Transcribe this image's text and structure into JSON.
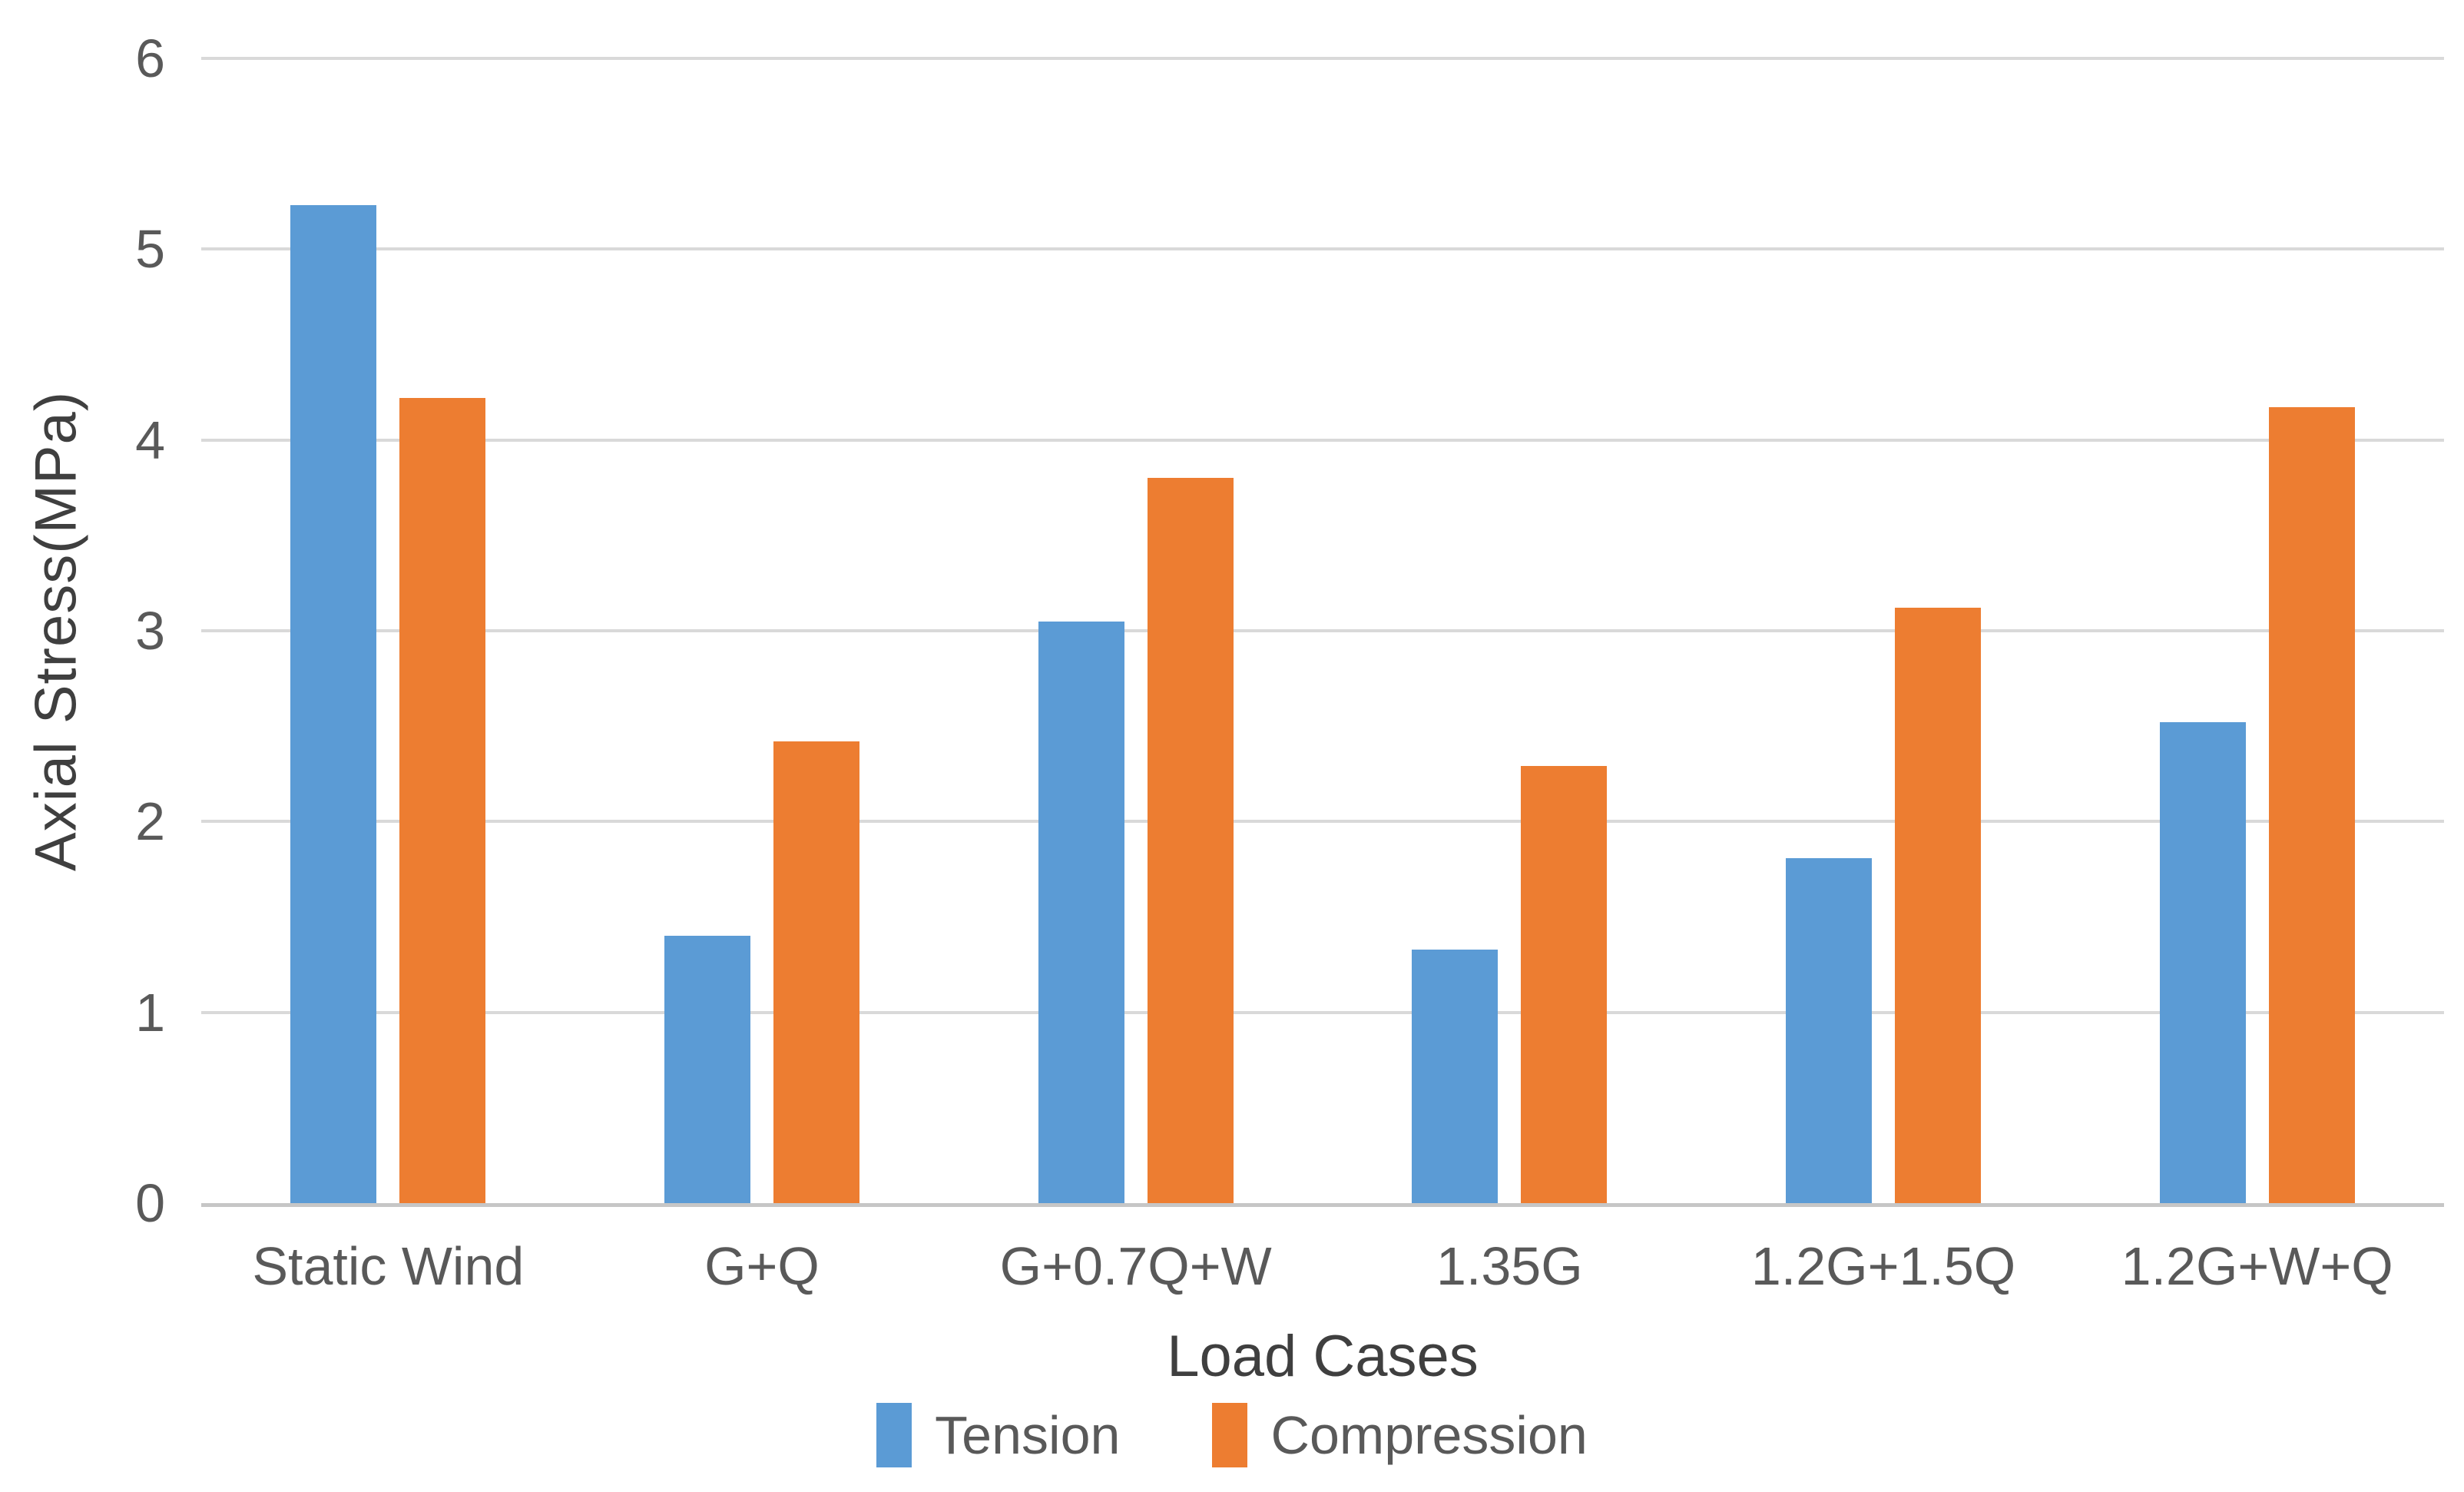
{
  "chart_data": {
    "type": "bar",
    "title": "",
    "categories": [
      "Static Wind",
      "G+Q",
      "G+0.7Q+W",
      "1.35G",
      "1.2G+1.5Q",
      "1.2G+W+Q"
    ],
    "series": [
      {
        "name": "Tension",
        "color": "#5B9BD5",
        "values": [
          5.23,
          1.4,
          3.05,
          1.33,
          1.81,
          2.52
        ]
      },
      {
        "name": "Compression",
        "color": "#ED7D31",
        "values": [
          4.22,
          2.42,
          3.8,
          2.29,
          3.12,
          4.17
        ]
      }
    ],
    "xlabel": "Load Cases",
    "ylabel": "Axial Stress(MPa)",
    "ylim": [
      0,
      6
    ],
    "yticks": [
      0,
      1,
      2,
      3,
      4,
      5,
      6
    ],
    "grid": true,
    "legend_position": "bottom"
  },
  "colors": {
    "gridline": "#d9d9d9",
    "axis_line": "#c6c6c6",
    "tick_text": "#595959",
    "title_text": "#3f3f3f",
    "background": "#ffffff"
  }
}
